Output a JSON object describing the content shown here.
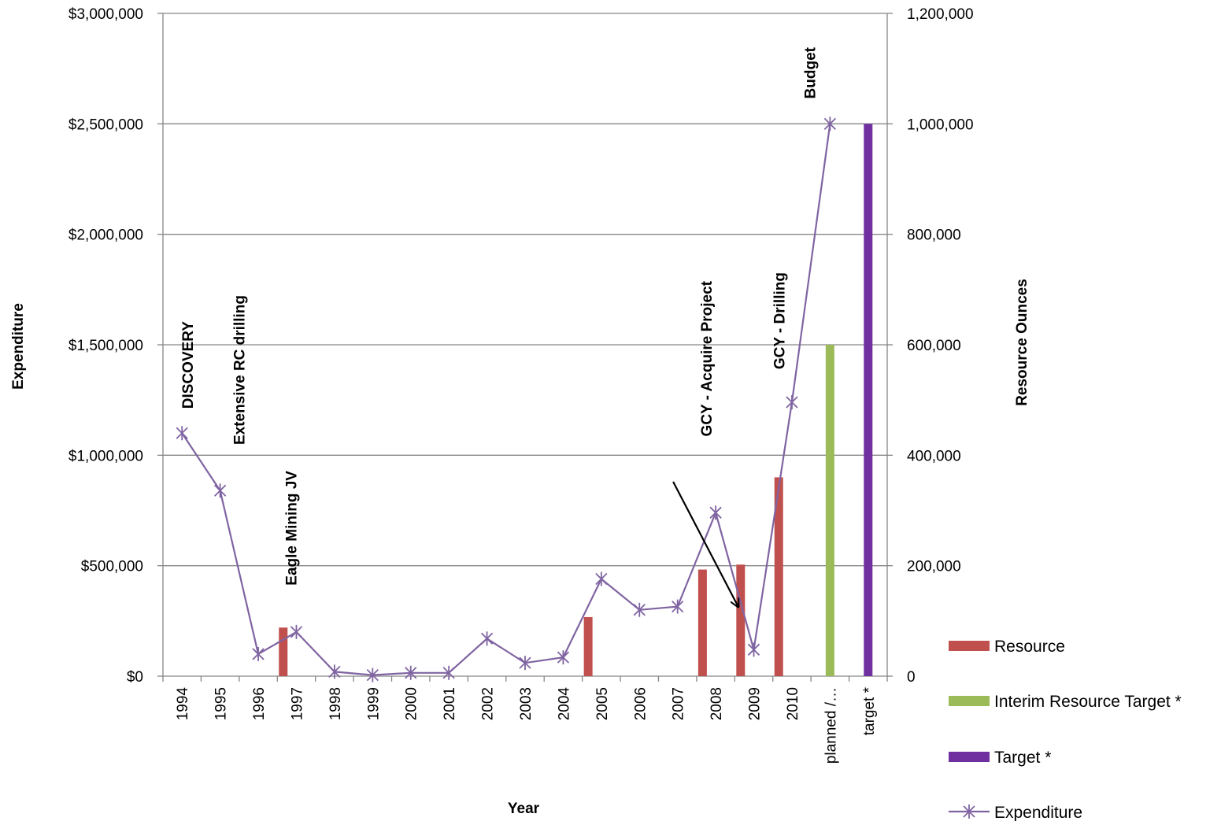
{
  "chart_data": {
    "type": "bar",
    "categories": [
      "1994",
      "1995",
      "1996",
      "1997",
      "1998",
      "1999",
      "2000",
      "2001",
      "2002",
      "2003",
      "2004",
      "2005",
      "2006",
      "2007",
      "2008",
      "2009",
      "2010",
      "planned /…",
      "target *"
    ],
    "x_axis": {
      "label": "Year"
    },
    "y_left": {
      "label": "Expenditure",
      "ylim": [
        0,
        3000000
      ],
      "ticks": [
        0,
        500000,
        1000000,
        1500000,
        2000000,
        2500000,
        3000000
      ],
      "tick_labels": [
        "$0",
        "$500,000",
        "$1,000,000",
        "$1,500,000",
        "$2,000,000",
        "$2,500,000",
        "$3,000,000"
      ]
    },
    "y_right": {
      "label": "Resource Ounces",
      "ylim": [
        0,
        1200000
      ],
      "ticks": [
        0,
        200000,
        400000,
        600000,
        800000,
        1000000,
        1200000
      ],
      "tick_labels": [
        "0",
        "200,000",
        "400,000",
        "600,000",
        "800,000",
        "1,000,000",
        "1,200,000"
      ]
    },
    "grid": true,
    "legend_position": "bottom-right",
    "series": [
      {
        "name": "Resource",
        "type": "bar",
        "axis": "right",
        "color": "#c0504d",
        "values": [
          null,
          null,
          null,
          88000,
          null,
          null,
          null,
          null,
          null,
          null,
          null,
          107000,
          null,
          null,
          193000,
          202000,
          360000,
          null,
          null
        ]
      },
      {
        "name": "Interim Resource Target *",
        "type": "bar",
        "axis": "right",
        "color": "#9bbb59",
        "values": [
          null,
          null,
          null,
          null,
          null,
          null,
          null,
          null,
          null,
          null,
          null,
          null,
          null,
          null,
          null,
          null,
          null,
          600000,
          null
        ]
      },
      {
        "name": "Target *",
        "type": "bar",
        "axis": "right",
        "color": "#7030a0",
        "values": [
          null,
          null,
          null,
          null,
          null,
          null,
          null,
          null,
          null,
          null,
          null,
          null,
          null,
          null,
          null,
          null,
          null,
          null,
          1000000
        ]
      },
      {
        "name": "Expenditure",
        "type": "line",
        "axis": "left",
        "color": "#8064a2",
        "values": [
          1100000,
          840000,
          100000,
          200000,
          20000,
          5000,
          15000,
          15000,
          170000,
          60000,
          85000,
          440000,
          300000,
          315000,
          740000,
          120000,
          1240000,
          2500000,
          null
        ]
      }
    ],
    "annotations": [
      {
        "text": "DISCOVERY",
        "category": "1994"
      },
      {
        "text": "Extensive RC drilling",
        "category": "1995"
      },
      {
        "text": "Eagle Mining JV",
        "category": "1997"
      },
      {
        "text": "GCY - Acquire Project",
        "category": "2008",
        "arrow_to_category": "2009"
      },
      {
        "text": "GCY - Drilling",
        "category": "2009"
      },
      {
        "text": "Budget",
        "category": "planned /…"
      }
    ]
  }
}
